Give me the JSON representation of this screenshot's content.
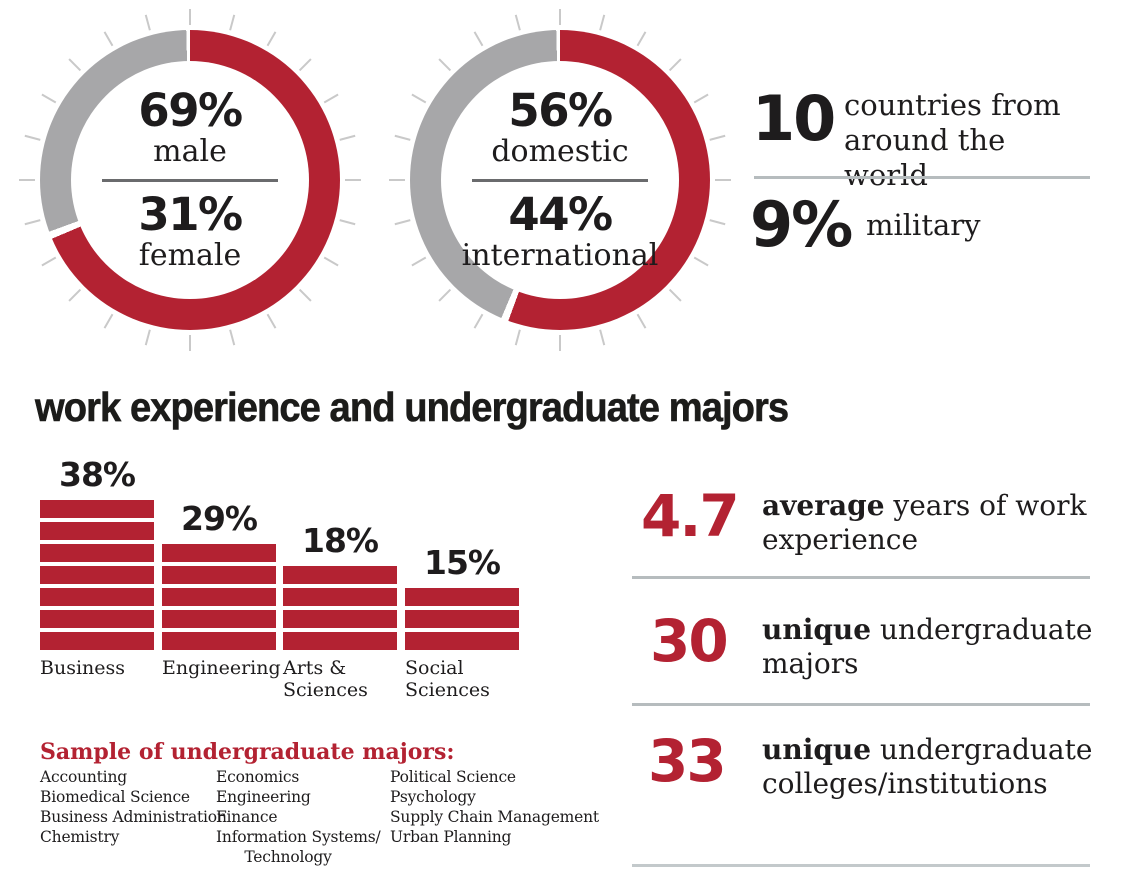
{
  "colors": {
    "red": "#B32232",
    "ring_gray": "#A7A7A9",
    "tick_gray": "#C9C9C9",
    "inner_rule": "#6A6B6D",
    "divider": "#B6BCBE",
    "text": "#1E1C1D"
  },
  "donuts": [
    {
      "top_value": "69%",
      "top_label": "male",
      "bottom_value": "31%",
      "bottom_label": "female"
    },
    {
      "top_value": "56%",
      "top_label": "domestic",
      "bottom_value": "44%",
      "bottom_label": "international"
    }
  ],
  "top_stats": [
    {
      "value": "10",
      "label": "countries from around the world"
    },
    {
      "value": "9%",
      "label": "military"
    }
  ],
  "section_heading": "work experience and undergraduate majors",
  "work_stats": [
    {
      "value": "4.7",
      "bold": "average",
      "rest": "years of work experience"
    },
    {
      "value": "30",
      "bold": "unique",
      "rest": "undergraduate majors"
    },
    {
      "value": "33",
      "bold": "unique",
      "rest": "undergraduate colleges/institutions"
    }
  ],
  "majors": {
    "title": "Sample of undergraduate majors:",
    "columns": [
      [
        "Accounting",
        "Biomedical Science",
        "Business Administration",
        "Chemistry"
      ],
      [
        "Economics",
        "Engineering",
        "Finance",
        "Information Systems/",
        "      Technology"
      ],
      [
        "Political Science",
        "Psychology",
        "Supply Chain Management",
        "Urban Planning"
      ]
    ]
  },
  "chart_data": [
    {
      "type": "pie",
      "subtype": "donut",
      "title": "gender split",
      "labels": [
        "male",
        "female"
      ],
      "values": [
        69,
        31
      ],
      "colors": [
        "#B32232",
        "#A7A7A9"
      ],
      "layout": "red slice starts at 12 o'clock and runs clockwise; gray fills remainder; 24 gray tick marks around ring",
      "center_text": [
        "69% male",
        "31% female"
      ]
    },
    {
      "type": "pie",
      "subtype": "donut",
      "title": "domestic vs international",
      "labels": [
        "domestic",
        "international"
      ],
      "values": [
        56,
        44
      ],
      "colors": [
        "#B32232",
        "#A7A7A9"
      ],
      "layout": "red slice starts at 12 o'clock and runs clockwise; gray fills remainder; 24 gray tick marks around ring",
      "center_text": [
        "56% domestic",
        "44% international"
      ]
    },
    {
      "type": "bar",
      "title": "work experience and undergraduate majors",
      "categories": [
        "Business",
        "Engineering",
        "Arts & Sciences",
        "Social Sciences"
      ],
      "values": [
        38,
        29,
        18,
        15
      ],
      "unit": "%",
      "value_labels": [
        "38%",
        "29%",
        "18%",
        "15%"
      ],
      "segments_per_bar": [
        7,
        5,
        4,
        3
      ],
      "bar_color": "#B32232",
      "layout": "each bar drawn as a stack of horizontal red segments, value label above each bar, category label below"
    }
  ]
}
